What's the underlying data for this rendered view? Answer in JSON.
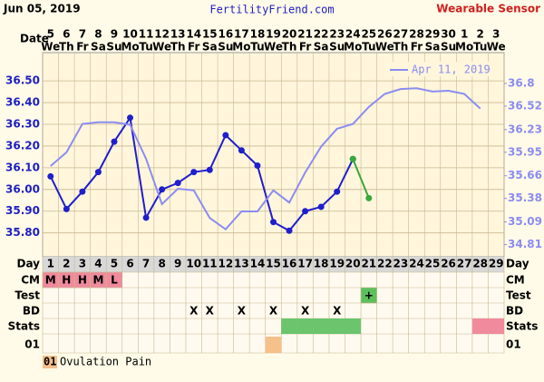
{
  "chart_data": {
    "type": "line",
    "header": {
      "date": "Jun 05, 2019",
      "site": "FertilityFriend.com",
      "source": "Wearable Sensor"
    },
    "date_label": "Date",
    "dates": [
      "5",
      "6",
      "7",
      "8",
      "9",
      "10",
      "11",
      "12",
      "13",
      "14",
      "15",
      "16",
      "17",
      "18",
      "19",
      "20",
      "21",
      "22",
      "23",
      "24",
      "25",
      "26",
      "27",
      "28",
      "29",
      "30",
      "1",
      "2",
      "3"
    ],
    "weekdays": [
      "We",
      "Th",
      "Fr",
      "Sa",
      "Su",
      "Mo",
      "Tu",
      "We",
      "Th",
      "Fr",
      "Sa",
      "Su",
      "Mo",
      "Tu",
      "We",
      "Th",
      "Fr",
      "Sa",
      "Su",
      "Mo",
      "Tu",
      "We",
      "Th",
      "Fr",
      "Sa",
      "Su",
      "Mo",
      "Tu",
      "We"
    ],
    "ylim": [
      35.69,
      36.63
    ],
    "yticks": [
      {
        "value": 36.5,
        "label": "36.50"
      },
      {
        "value": 36.4,
        "label": "36.40"
      },
      {
        "value": 36.3,
        "label": "36.30"
      },
      {
        "value": 36.2,
        "label": "36.20"
      },
      {
        "value": 36.1,
        "label": "36.10"
      },
      {
        "value": 36.0,
        "label": "36.00"
      },
      {
        "value": 35.9,
        "label": "35.90"
      },
      {
        "value": 35.8,
        "label": "35.80"
      }
    ],
    "y2lim": [
      34.66,
      37.18
    ],
    "y2ticks": [
      36.8,
      36.52,
      36.23,
      35.95,
      35.66,
      35.38,
      35.09,
      34.81
    ],
    "legend": "upper right",
    "series": [
      {
        "color": "#1f1fcc",
        "values": [
          36.06,
          35.91,
          35.99,
          36.08,
          36.22,
          36.33,
          35.87,
          36.0,
          36.03,
          36.08,
          36.09,
          36.25,
          36.18,
          36.11,
          35.85,
          35.81,
          35.9,
          35.92,
          35.99,
          36.14,
          null,
          null,
          null,
          null,
          null,
          null,
          null,
          null,
          null
        ]
      },
      {
        "color": "#3aa83a",
        "values": [
          null,
          null,
          null,
          null,
          null,
          null,
          null,
          null,
          null,
          null,
          null,
          null,
          null,
          null,
          null,
          null,
          null,
          null,
          null,
          36.14,
          35.96,
          null,
          null,
          null,
          null,
          null,
          null,
          null,
          null
        ]
      },
      {
        "name": "Apr 11, 2019",
        "color": "#8c8cf0",
        "axis": "y2",
        "values": [
          35.78,
          35.95,
          36.3,
          36.32,
          36.32,
          36.29,
          35.87,
          35.31,
          35.5,
          35.48,
          35.14,
          35.0,
          35.22,
          35.22,
          35.48,
          35.33,
          35.7,
          36.02,
          36.24,
          36.3,
          36.51,
          36.67,
          36.73,
          36.74,
          36.7,
          36.71,
          36.67,
          36.49,
          null
        ]
      }
    ],
    "rows": {
      "day_label": "Day",
      "days": [
        1,
        2,
        3,
        4,
        5,
        6,
        7,
        8,
        9,
        10,
        11,
        12,
        13,
        14,
        15,
        16,
        17,
        18,
        19,
        20,
        21,
        22,
        23,
        24,
        25,
        26,
        27,
        28,
        29
      ],
      "cm_label": "CM",
      "cm": [
        "M",
        "H",
        "H",
        "M",
        "L",
        null,
        null,
        null,
        null,
        null,
        null,
        null,
        null,
        null,
        null,
        null,
        null,
        null,
        null,
        null,
        null,
        null,
        null,
        null,
        null,
        null,
        null,
        null,
        null
      ],
      "cm_color": "#f08a9c",
      "test_label": "Test",
      "test": [
        null,
        null,
        null,
        null,
        null,
        null,
        null,
        null,
        null,
        null,
        null,
        null,
        null,
        null,
        null,
        null,
        null,
        null,
        null,
        null,
        "+",
        null,
        null,
        null,
        null,
        null,
        null,
        null,
        null
      ],
      "test_color": "#5cc05c",
      "bd_label": "BD",
      "bd": [
        null,
        null,
        null,
        null,
        null,
        null,
        null,
        null,
        null,
        "X",
        "X",
        null,
        "X",
        null,
        "X",
        null,
        "X",
        null,
        "X",
        null,
        null,
        null,
        null,
        null,
        null,
        null,
        null,
        null,
        null
      ],
      "stats_label": "Stats",
      "stats_colors": [
        null,
        null,
        null,
        null,
        null,
        null,
        null,
        null,
        null,
        null,
        null,
        null,
        null,
        null,
        null,
        "#6cc46c",
        "#6cc46c",
        "#6cc46c",
        "#6cc46c",
        "#6cc46c",
        null,
        null,
        null,
        null,
        null,
        null,
        null,
        "#f08a9c",
        "#f08a9c"
      ],
      "o1_label": "01",
      "o1_colors": [
        null,
        null,
        null,
        null,
        null,
        null,
        null,
        null,
        null,
        null,
        null,
        null,
        null,
        null,
        "#f5c08a",
        null,
        null,
        null,
        null,
        null,
        null,
        null,
        null,
        null,
        null,
        null,
        null,
        null,
        null
      ]
    },
    "footnote": {
      "code": "01",
      "text": "Ovulation Pain"
    }
  }
}
